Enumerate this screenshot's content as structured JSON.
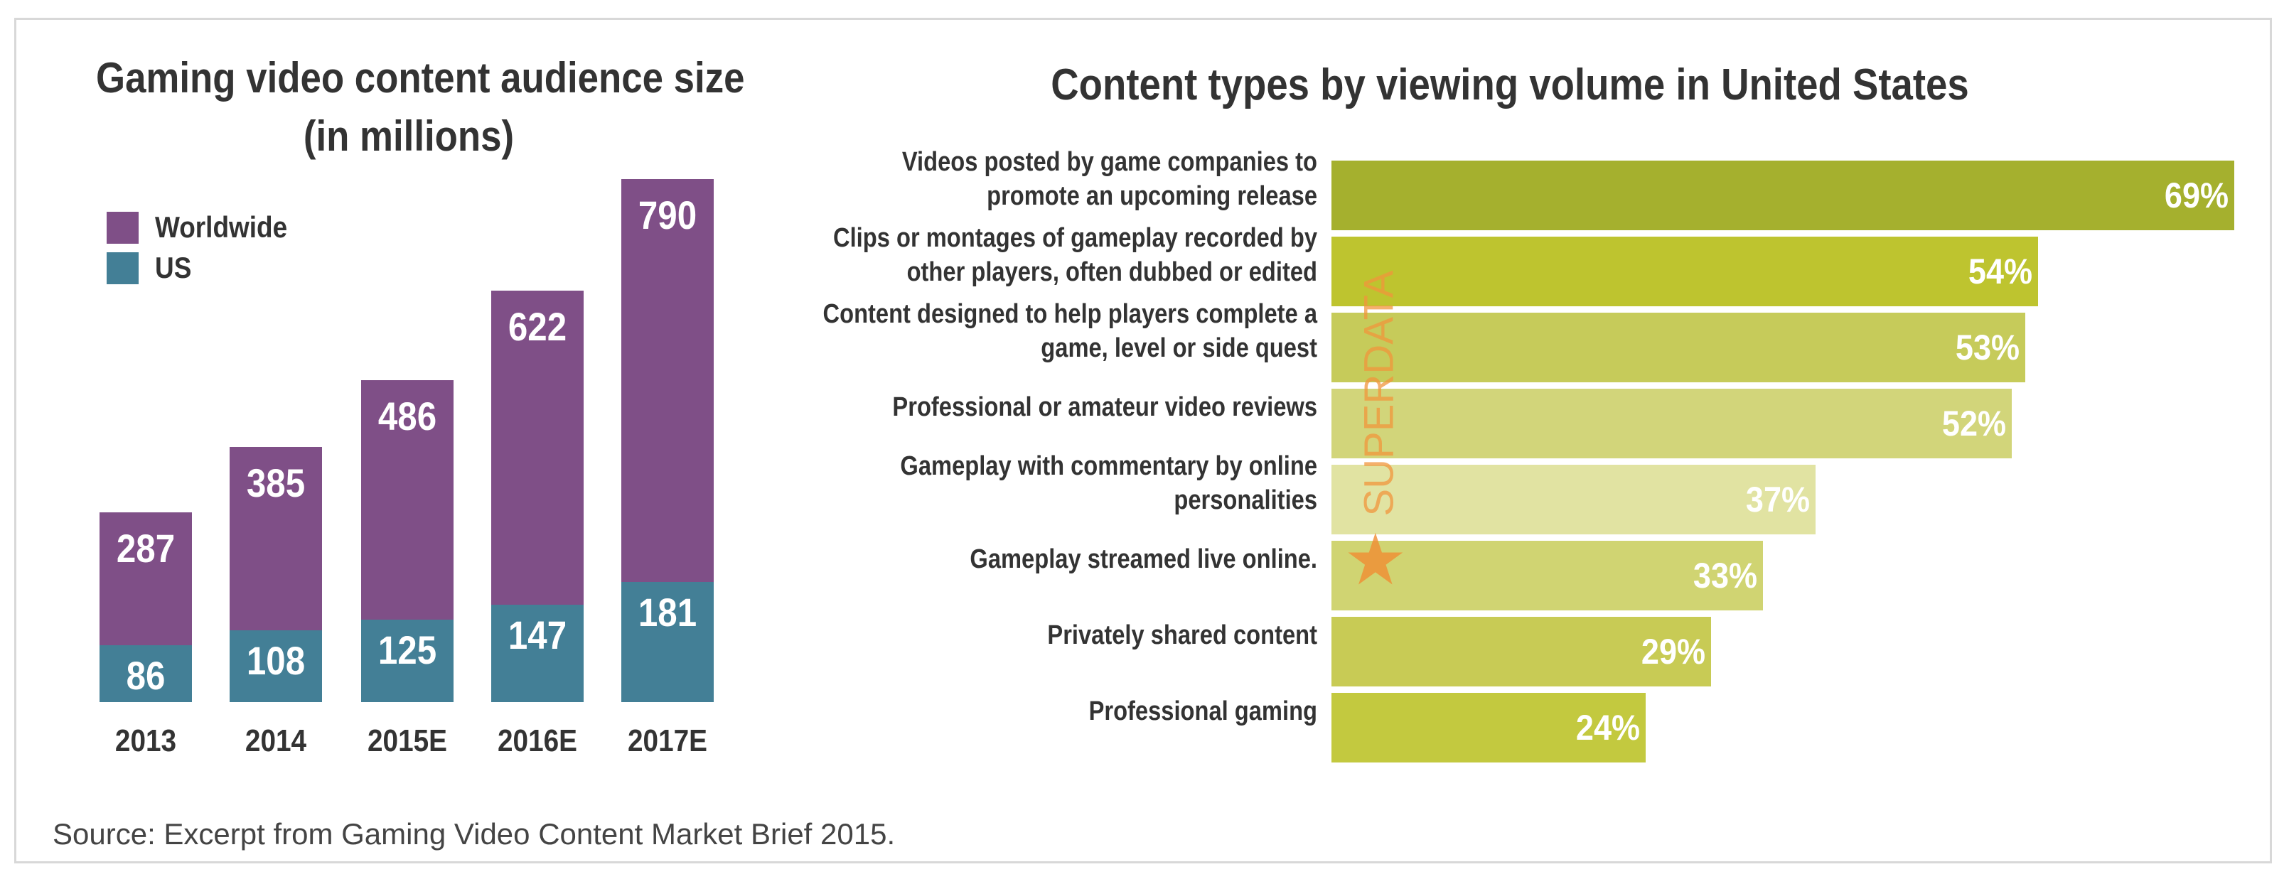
{
  "chart_data": [
    {
      "type": "bar",
      "title": [
        "Gaming video content audience size",
        "(in millions)"
      ],
      "categories": [
        "2013",
        "2014",
        "2015E",
        "2016E",
        "2017E"
      ],
      "series": [
        {
          "name": "Worldwide",
          "color": "#7f4f87",
          "values": [
            287,
            385,
            486,
            622,
            790
          ]
        },
        {
          "name": "US",
          "color": "#437f96",
          "values": [
            86,
            108,
            125,
            147,
            181
          ]
        }
      ],
      "source": "Source: Excerpt from Gaming Video Content Market Brief 2015."
    },
    {
      "type": "hbar",
      "title": "Content types by viewing volume in United States",
      "categories": [
        [
          "Videos posted by game companies to",
          "promote an upcoming release"
        ],
        [
          "Clips or montages of gameplay recorded by",
          "other players, often dubbed or edited"
        ],
        [
          "Content designed to help players complete a",
          "game, level or side quest"
        ],
        [
          "Professional or amateur video reviews"
        ],
        [
          "Gameplay with commentary by online",
          "personalities"
        ],
        [
          "Gameplay streamed live online."
        ],
        [
          "Privately shared content"
        ],
        [
          "Professional gaming"
        ]
      ],
      "values": [
        69,
        54,
        53,
        52,
        37,
        33,
        29,
        24
      ],
      "value_labels": [
        "69%",
        "54%",
        "53%",
        "52%",
        "37%",
        "33%",
        "29%",
        "24%"
      ],
      "colors": [
        "#a5b02e",
        "#bec42f",
        "#c6cb5a",
        "#d2d57a",
        "#e1e3a2",
        "#d0d472",
        "#c8cb55",
        "#c3c93f"
      ],
      "watermark": "SUPERDATA"
    }
  ]
}
